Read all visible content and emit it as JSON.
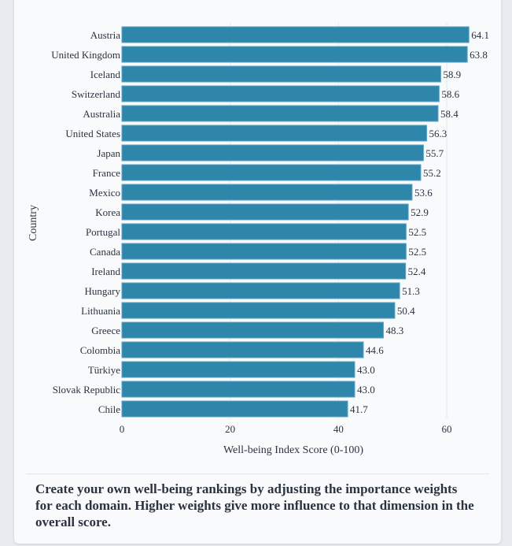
{
  "chart_data": {
    "type": "bar",
    "orientation": "horizontal",
    "categories": [
      "Austria",
      "United Kingdom",
      "Iceland",
      "Switzerland",
      "Australia",
      "United States",
      "Japan",
      "France",
      "Mexico",
      "Korea",
      "Portugal",
      "Canada",
      "Ireland",
      "Hungary",
      "Lithuania",
      "Greece",
      "Colombia",
      "Türkiye",
      "Slovak Republic",
      "Chile"
    ],
    "values": [
      64.1,
      63.8,
      58.9,
      58.6,
      58.4,
      56.3,
      55.7,
      55.2,
      53.6,
      52.9,
      52.5,
      52.5,
      52.4,
      51.3,
      50.4,
      48.3,
      44.6,
      43.0,
      43.0,
      41.7
    ],
    "value_labels": [
      "64.1",
      "63.8",
      "58.9",
      "58.6",
      "58.4",
      "56.3",
      "55.7",
      "55.2",
      "53.6",
      "52.9",
      "52.5",
      "52.5",
      "52.4",
      "51.3",
      "50.4",
      "48.3",
      "44.6",
      "43.0",
      "43.0",
      "41.7"
    ],
    "xlabel": "Well-being Index Score (0-100)",
    "ylabel": "Country",
    "xticks": [
      "0",
      "20",
      "40",
      "60"
    ],
    "xlim": [
      0,
      64.4
    ],
    "grid": true,
    "bar_color": "#2e86ab"
  },
  "note": "Create your own well-being rankings by adjusting the importance weights for each domain. Higher weights give more influence to that dimension in the overall score."
}
